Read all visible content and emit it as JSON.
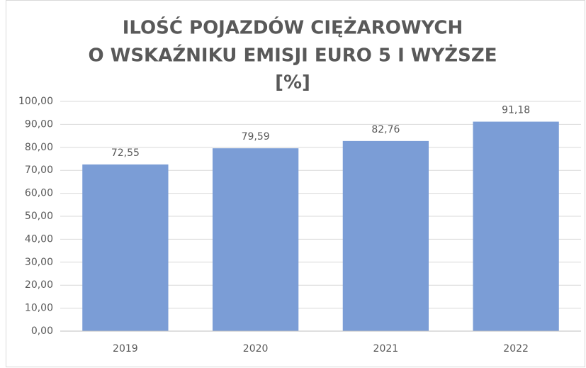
{
  "chart_data": {
    "type": "bar",
    "title": [
      "ILOŚĆ POJAZDÓW CIĘŻAROWYCH",
      "O WSKAŹNIKU EMISJI EURO 5 I WYŻSZE",
      "[%]"
    ],
    "categories": [
      "2019",
      "2020",
      "2021",
      "2022"
    ],
    "values": [
      72.55,
      79.59,
      82.76,
      91.18
    ],
    "value_labels": [
      "72,55",
      "79,59",
      "82,76",
      "91,18"
    ],
    "color": "#7b9dd6",
    "ylim": [
      0,
      100
    ],
    "yticks": [
      {
        "value": 0,
        "label": "0,00"
      },
      {
        "value": 10,
        "label": "10,00"
      },
      {
        "value": 20,
        "label": "20,00"
      },
      {
        "value": 30,
        "label": "30,00"
      },
      {
        "value": 40,
        "label": "40,00"
      },
      {
        "value": 50,
        "label": "50,00"
      },
      {
        "value": 60,
        "label": "60,00"
      },
      {
        "value": 70,
        "label": "70,00"
      },
      {
        "value": 80,
        "label": "80,00"
      },
      {
        "value": 90,
        "label": "90,00"
      },
      {
        "value": 100,
        "label": "100,00"
      }
    ],
    "grid": true
  }
}
